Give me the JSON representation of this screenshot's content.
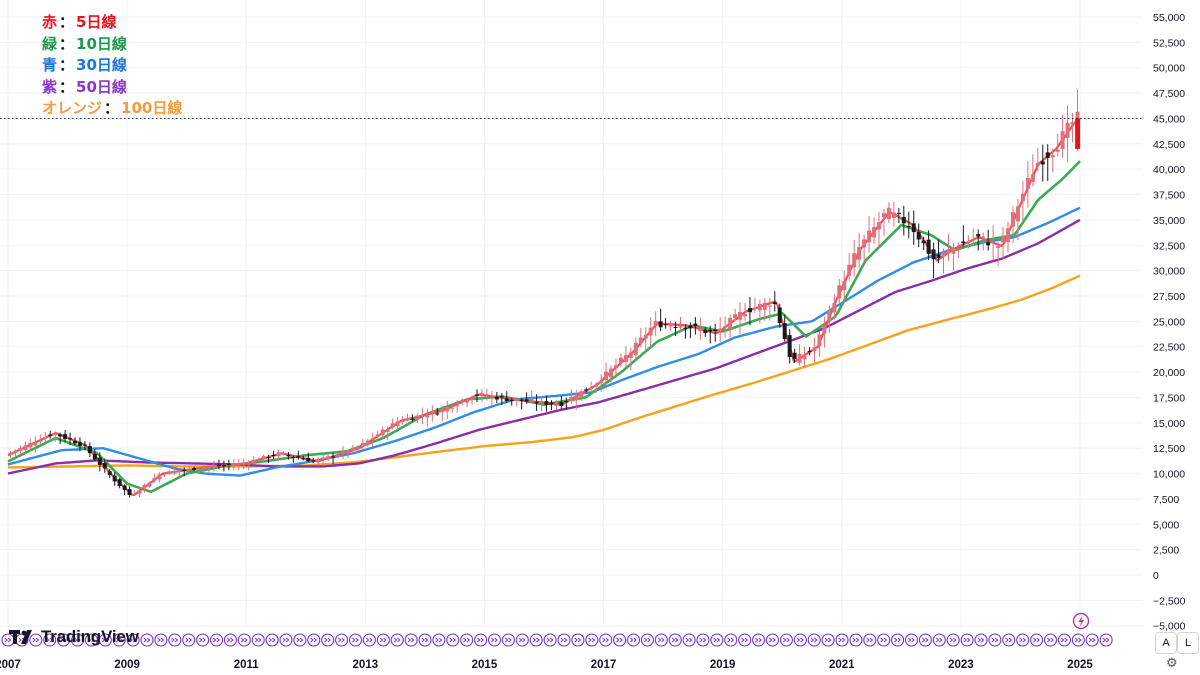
{
  "legend": [
    {
      "label": "赤",
      "sep": "：",
      "name": "5日線",
      "color": "#e8121d"
    },
    {
      "label": "緑",
      "sep": "：",
      "name": "10日線",
      "color": "#1a9a4a"
    },
    {
      "label": "青",
      "sep": "：",
      "name": "30日線",
      "color": "#1976e0"
    },
    {
      "label": "紫",
      "sep": "：",
      "name": "50日線",
      "color": "#8a34c8"
    },
    {
      "label": "オレンジ",
      "sep": "：",
      "name": "100日線",
      "color": "#f59a3c"
    }
  ],
  "branding": {
    "logo_text": "TradingView"
  },
  "scale_buttons": {
    "auto": "A",
    "log": "L"
  },
  "colors": {
    "candle_up": "#e0707a",
    "candle_down": "#1a1a1a",
    "ma5": "#e8515a",
    "ma10": "#3aaa55",
    "ma30": "#2f8ee6",
    "ma50": "#8a2ea8",
    "ma100": "#f5a31a",
    "event_marker": "#7b2fd1"
  },
  "chart_data": {
    "type": "candlestick",
    "y_ticks": [
      "55,000",
      "52,500",
      "50,000",
      "47,500",
      "45,000",
      "42,500",
      "40,000",
      "37,500",
      "35,000",
      "32,500",
      "30,000",
      "27,500",
      "25,000",
      "22,500",
      "20,000",
      "17,500",
      "15,000",
      "12,500",
      "10,000",
      "7,500",
      "5,000",
      "2,500",
      "0",
      "−2,500",
      "−5,000"
    ],
    "x_ticks": [
      "2007",
      "2009",
      "2011",
      "2013",
      "2015",
      "2017",
      "2019",
      "2021",
      "2023",
      "2025"
    ],
    "ylim": [
      -6000,
      56000
    ],
    "xlim": [
      2007.0,
      2025.3
    ],
    "last_price": 45000,
    "grid": true,
    "price_anchors": [
      [
        2007.0,
        17200
      ],
      [
        2007.5,
        17500
      ],
      [
        2007.9,
        15300
      ],
      [
        2008.3,
        13500
      ],
      [
        2008.7,
        11500
      ],
      [
        2008.9,
        8500
      ],
      [
        2009.1,
        7500
      ],
      [
        2009.4,
        9500
      ],
      [
        2009.8,
        10500
      ],
      [
        2010.2,
        10700
      ],
      [
        2010.5,
        9400
      ],
      [
        2010.9,
        10200
      ],
      [
        2011.2,
        9800
      ],
      [
        2011.6,
        9300
      ],
      [
        2011.9,
        8600
      ],
      [
        2012.3,
        9500
      ],
      [
        2012.6,
        8800
      ],
      [
        2012.9,
        10200
      ],
      [
        2013.4,
        13800
      ],
      [
        2013.8,
        15500
      ],
      [
        2014.3,
        14800
      ],
      [
        2014.8,
        16500
      ],
      [
        2015.0,
        17500
      ],
      [
        2015.4,
        20500
      ],
      [
        2015.7,
        17800
      ],
      [
        2016.0,
        16800
      ],
      [
        2016.5,
        15800
      ],
      [
        2016.9,
        19000
      ],
      [
        2017.4,
        20000
      ],
      [
        2017.9,
        22800
      ],
      [
        2018.3,
        22200
      ],
      [
        2018.8,
        23000
      ],
      [
        2018.95,
        20000
      ],
      [
        2019.3,
        21300
      ],
      [
        2019.7,
        22500
      ],
      [
        2019.95,
        23800
      ],
      [
        2020.2,
        17800
      ],
      [
        2020.5,
        22000
      ],
      [
        2020.9,
        26400
      ],
      [
        2021.2,
        29000
      ],
      [
        2021.6,
        28500
      ],
      [
        2021.9,
        28800
      ],
      [
        2022.3,
        26500
      ],
      [
        2022.6,
        27800
      ],
      [
        2022.9,
        26100
      ],
      [
        2023.3,
        28500
      ],
      [
        2023.6,
        32500
      ],
      [
        2023.9,
        33400
      ],
      [
        2024.1,
        39000
      ],
      [
        2024.25,
        40500
      ],
      [
        2024.6,
        38500
      ],
      [
        2024.9,
        42000
      ],
      [
        2025.0,
        44500
      ]
    ],
    "ma_anchors": {
      "ma5": [
        [
          2007.0,
          11800
        ],
        [
          2007.8,
          14000
        ],
        [
          2008.3,
          12800
        ],
        [
          2008.8,
          9500
        ],
        [
          2009.1,
          7800
        ],
        [
          2009.6,
          10000
        ],
        [
          2010.3,
          10600
        ],
        [
          2011.0,
          11000
        ],
        [
          2011.6,
          12000
        ],
        [
          2012.2,
          11200
        ],
        [
          2012.9,
          12500
        ],
        [
          2013.6,
          15200
        ],
        [
          2014.3,
          16200
        ],
        [
          2014.9,
          17800
        ],
        [
          2015.5,
          17300
        ],
        [
          2016.3,
          16800
        ],
        [
          2016.9,
          18800
        ],
        [
          2017.5,
          22000
        ],
        [
          2017.9,
          24800
        ],
        [
          2018.4,
          24600
        ],
        [
          2018.9,
          23800
        ],
        [
          2019.4,
          26000
        ],
        [
          2019.9,
          27000
        ],
        [
          2020.2,
          21000
        ],
        [
          2020.6,
          22500
        ],
        [
          2020.9,
          27000
        ],
        [
          2021.3,
          32000
        ],
        [
          2021.8,
          35800
        ],
        [
          2022.2,
          34500
        ],
        [
          2022.6,
          31000
        ],
        [
          2022.9,
          32200
        ],
        [
          2023.3,
          33300
        ],
        [
          2023.7,
          32400
        ],
        [
          2024.0,
          36500
        ],
        [
          2024.3,
          40500
        ],
        [
          2024.6,
          42000
        ],
        [
          2024.9,
          44500
        ],
        [
          2025.0,
          45000
        ]
      ],
      "ma10": [
        [
          2007.0,
          11200
        ],
        [
          2007.8,
          13500
        ],
        [
          2008.5,
          12000
        ],
        [
          2009.0,
          9000
        ],
        [
          2009.4,
          8200
        ],
        [
          2010.0,
          10000
        ],
        [
          2010.6,
          10700
        ],
        [
          2011.3,
          11200
        ],
        [
          2012.0,
          11800
        ],
        [
          2012.7,
          12200
        ],
        [
          2013.3,
          13500
        ],
        [
          2014.0,
          15800
        ],
        [
          2014.7,
          17300
        ],
        [
          2015.3,
          17600
        ],
        [
          2016.0,
          16800
        ],
        [
          2016.7,
          17500
        ],
        [
          2017.3,
          20000
        ],
        [
          2017.9,
          23000
        ],
        [
          2018.5,
          24600
        ],
        [
          2019.0,
          24000
        ],
        [
          2019.6,
          25200
        ],
        [
          2020.0,
          25800
        ],
        [
          2020.4,
          23500
        ],
        [
          2020.9,
          25500
        ],
        [
          2021.4,
          31000
        ],
        [
          2022.0,
          34500
        ],
        [
          2022.5,
          33500
        ],
        [
          2022.9,
          32000
        ],
        [
          2023.4,
          33000
        ],
        [
          2023.9,
          33500
        ],
        [
          2024.3,
          37000
        ],
        [
          2024.7,
          39000
        ],
        [
          2025.0,
          40800
        ]
      ],
      "ma30": [
        [
          2007.0,
          10900
        ],
        [
          2007.9,
          12300
        ],
        [
          2008.6,
          12500
        ],
        [
          2009.2,
          11500
        ],
        [
          2009.8,
          10500
        ],
        [
          2010.3,
          10000
        ],
        [
          2010.9,
          9800
        ],
        [
          2011.5,
          10600
        ],
        [
          2012.1,
          11200
        ],
        [
          2012.8,
          12000
        ],
        [
          2013.5,
          13200
        ],
        [
          2014.2,
          14600
        ],
        [
          2014.8,
          16000
        ],
        [
          2015.5,
          17300
        ],
        [
          2016.1,
          17600
        ],
        [
          2016.8,
          18000
        ],
        [
          2017.3,
          19200
        ],
        [
          2017.9,
          20500
        ],
        [
          2018.6,
          21800
        ],
        [
          2019.2,
          23400
        ],
        [
          2019.9,
          24500
        ],
        [
          2020.5,
          25000
        ],
        [
          2021.0,
          26800
        ],
        [
          2021.6,
          29000
        ],
        [
          2022.2,
          30800
        ],
        [
          2022.8,
          32000
        ],
        [
          2023.4,
          32800
        ],
        [
          2023.9,
          33300
        ],
        [
          2024.5,
          34800
        ],
        [
          2025.0,
          36200
        ]
      ],
      "ma50": [
        [
          2007.0,
          10000
        ],
        [
          2007.8,
          11000
        ],
        [
          2008.5,
          11300
        ],
        [
          2009.3,
          11100
        ],
        [
          2010.1,
          11000
        ],
        [
          2010.8,
          10900
        ],
        [
          2011.5,
          10700
        ],
        [
          2012.3,
          10700
        ],
        [
          2012.9,
          11000
        ],
        [
          2013.5,
          11800
        ],
        [
          2014.2,
          13000
        ],
        [
          2014.9,
          14300
        ],
        [
          2015.6,
          15300
        ],
        [
          2016.3,
          16300
        ],
        [
          2016.9,
          17000
        ],
        [
          2017.5,
          18000
        ],
        [
          2018.2,
          19200
        ],
        [
          2018.9,
          20400
        ],
        [
          2019.5,
          21700
        ],
        [
          2020.1,
          23000
        ],
        [
          2020.7,
          24300
        ],
        [
          2021.3,
          26100
        ],
        [
          2021.9,
          27900
        ],
        [
          2022.5,
          29000
        ],
        [
          2023.1,
          30200
        ],
        [
          2023.7,
          31200
        ],
        [
          2024.3,
          32700
        ],
        [
          2025.0,
          35000
        ]
      ],
      "ma100": [
        [
          2007.0,
          10600
        ],
        [
          2008.0,
          10700
        ],
        [
          2009.0,
          10800
        ],
        [
          2010.0,
          10700
        ],
        [
          2011.0,
          10700
        ],
        [
          2012.0,
          10800
        ],
        [
          2012.8,
          11100
        ],
        [
          2013.5,
          11600
        ],
        [
          2014.3,
          12200
        ],
        [
          2015.0,
          12700
        ],
        [
          2015.8,
          13100
        ],
        [
          2016.5,
          13600
        ],
        [
          2017.0,
          14300
        ],
        [
          2017.6,
          15500
        ],
        [
          2018.2,
          16600
        ],
        [
          2018.8,
          17700
        ],
        [
          2019.5,
          18900
        ],
        [
          2020.1,
          20000
        ],
        [
          2020.8,
          21300
        ],
        [
          2021.5,
          22800
        ],
        [
          2022.1,
          24100
        ],
        [
          2022.8,
          25200
        ],
        [
          2023.4,
          26100
        ],
        [
          2024.0,
          27100
        ],
        [
          2024.5,
          28200
        ],
        [
          2025.0,
          29500
        ]
      ]
    }
  }
}
